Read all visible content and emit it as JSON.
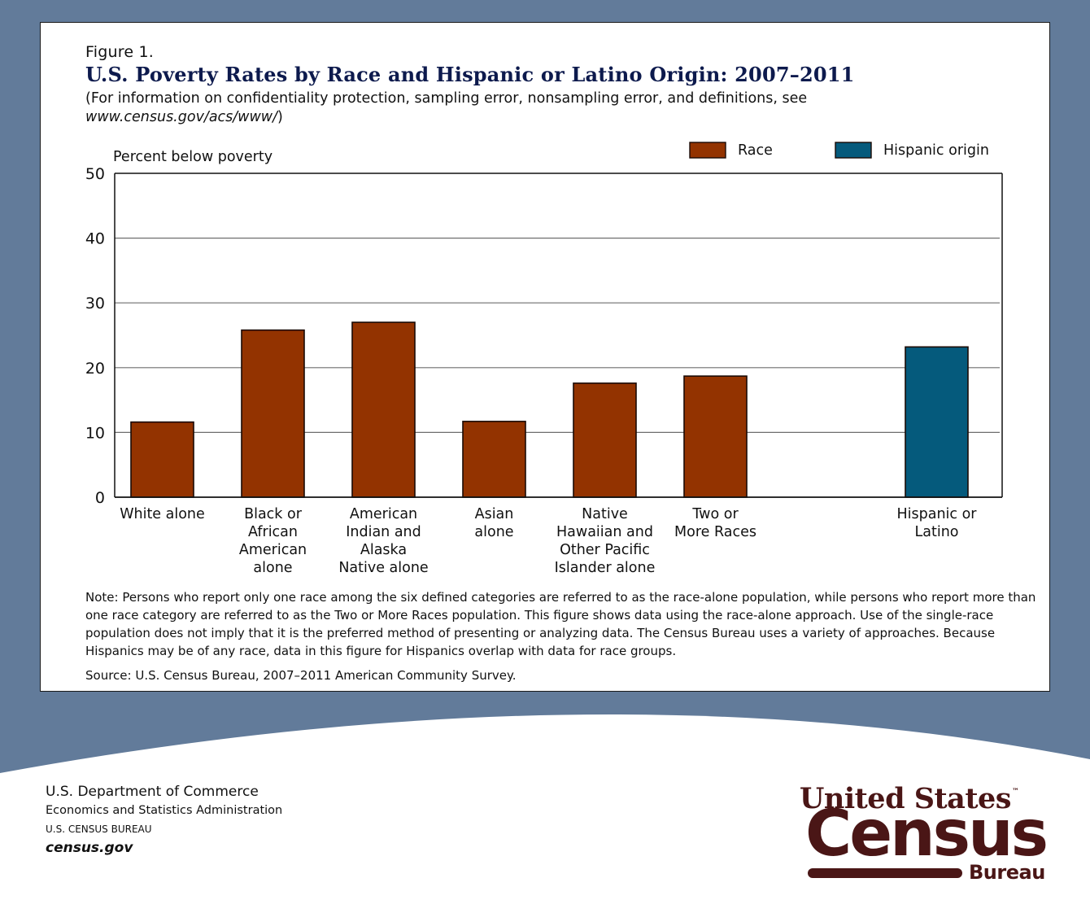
{
  "figure": {
    "label": "Figure 1.",
    "title": "U.S. Poverty Rates by Race and Hispanic or Latino Origin: 2007–2011",
    "subtitle_line1": "(For information on confidentiality protection, sampling error, nonsampling error, and definitions, see",
    "subtitle_link": "www.census.gov/acs/www/",
    "subtitle_close": ")"
  },
  "colors": {
    "race": "#933300",
    "hispanic_origin": "#055a7c",
    "background_band": "#627b9a",
    "logo": "#4a1616"
  },
  "chart_data": {
    "type": "bar",
    "title": "U.S. Poverty Rates by Race and Hispanic or Latino Origin: 2007–2011",
    "xlabel": "",
    "ylabel": "Percent below poverty",
    "ylim": [
      0,
      50
    ],
    "yticks": [
      0,
      10,
      20,
      30,
      40,
      50
    ],
    "grid": true,
    "legend_position": "top-right",
    "legend": [
      {
        "name": "Race",
        "color": "#933300"
      },
      {
        "name": "Hispanic origin",
        "color": "#055a7c"
      }
    ],
    "categories": [
      [
        "White alone"
      ],
      [
        "Black or",
        "African",
        "American",
        "alone"
      ],
      [
        "American",
        "Indian and",
        "Alaska",
        "Native alone"
      ],
      [
        "Asian",
        "alone"
      ],
      [
        "Native",
        "Hawaiian and",
        "Other Pacific",
        "Islander alone"
      ],
      [
        "Two or",
        "More Races"
      ],
      [],
      [
        "Hispanic or",
        "Latino"
      ]
    ],
    "series": [
      {
        "name": "Race",
        "values": [
          11.6,
          25.8,
          27.0,
          11.7,
          17.6,
          18.7,
          null,
          null
        ]
      },
      {
        "name": "Hispanic origin",
        "values": [
          null,
          null,
          null,
          null,
          null,
          null,
          null,
          23.2
        ]
      }
    ]
  },
  "note": "Note: Persons who report only one race among the six defined categories are referred to as the race-alone population, while persons who report more than one race category are referred to as the Two or More Races population. This figure shows data using the race-alone approach. Use of the single-race population does not imply that it is the preferred method of presenting or analyzing data. The Census Bureau uses a variety of approaches. Because Hispanics may be of any race, data in this figure for Hispanics overlap with data for race groups.",
  "source": "Source: U.S. Census Bureau, 2007–2011 American Community Survey.",
  "footer": {
    "dept": "U.S. Department of Commerce",
    "admin": "Economics and Statistics Administration",
    "bureau": "U.S. CENSUS BUREAU",
    "site": "census.gov"
  },
  "logo": {
    "line1": "United States",
    "tm": "™",
    "line2": "Census",
    "line3": "Bureau"
  }
}
